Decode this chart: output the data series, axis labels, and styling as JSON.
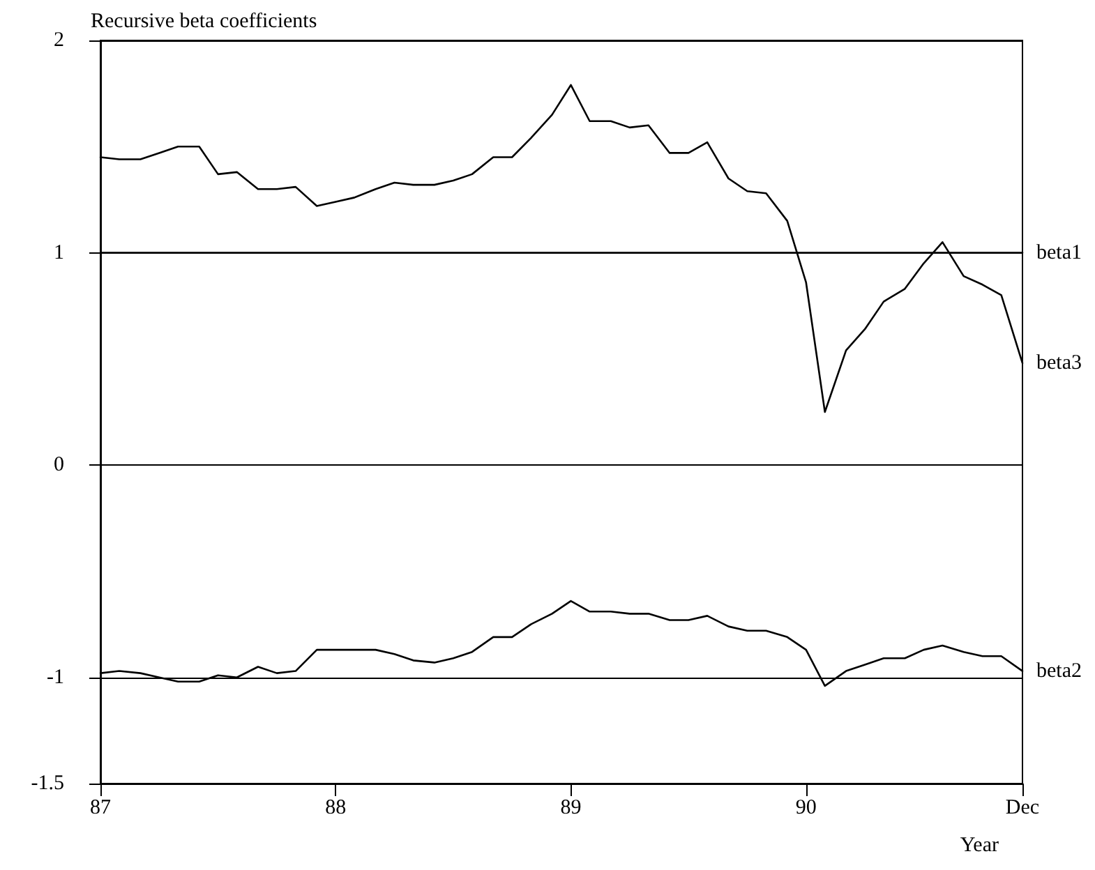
{
  "chart_data": {
    "type": "line",
    "title": "Recursive beta coefficients",
    "xlabel": "Year",
    "x": [
      87,
      87.08,
      87.17,
      87.25,
      87.33,
      87.42,
      87.5,
      87.58,
      87.67,
      87.75,
      87.83,
      87.92,
      88,
      88.08,
      88.17,
      88.25,
      88.33,
      88.42,
      88.5,
      88.58,
      88.67,
      88.75,
      88.83,
      88.92,
      89,
      89.08,
      89.17,
      89.25,
      89.33,
      89.42,
      89.5,
      89.58,
      89.67,
      89.75,
      89.83,
      89.92,
      90,
      90.08,
      90.17,
      90.25,
      90.33,
      90.42,
      90.5,
      90.58,
      90.67,
      90.75,
      90.83,
      90.92
    ],
    "series": [
      {
        "name": "beta1",
        "color": "#000000",
        "x": [
          87,
          90.92
        ],
        "values": [
          1,
          1
        ]
      },
      {
        "name": "beta3",
        "color": "#000000",
        "values": [
          1.45,
          1.44,
          1.44,
          1.47,
          1.5,
          1.5,
          1.37,
          1.38,
          1.3,
          1.3,
          1.31,
          1.22,
          1.24,
          1.26,
          1.3,
          1.33,
          1.32,
          1.32,
          1.34,
          1.37,
          1.45,
          1.45,
          1.54,
          1.65,
          1.79,
          1.62,
          1.62,
          1.59,
          1.6,
          1.47,
          1.47,
          1.52,
          1.35,
          1.29,
          1.28,
          1.15,
          0.86,
          0.25,
          0.54,
          0.64,
          0.77,
          0.83,
          0.95,
          1.05,
          0.89,
          0.85,
          0.8,
          0.48
        ]
      },
      {
        "name": "beta2",
        "color": "#000000",
        "values": [
          -0.98,
          -0.97,
          -0.98,
          -1,
          -1.02,
          -1.02,
          -0.99,
          -1,
          -0.95,
          -0.98,
          -0.97,
          -0.87,
          -0.87,
          -0.87,
          -0.87,
          -0.89,
          -0.92,
          -0.93,
          -0.91,
          -0.88,
          -0.81,
          -0.81,
          -0.75,
          -0.7,
          -0.64,
          -0.69,
          -0.69,
          -0.7,
          -0.7,
          -0.73,
          -0.73,
          -0.71,
          -0.76,
          -0.78,
          -0.78,
          -0.81,
          -0.87,
          -1.04,
          -0.97,
          -0.94,
          -0.91,
          -0.91,
          -0.87,
          -0.85,
          -0.88,
          -0.9,
          -0.9,
          -0.97
        ]
      }
    ],
    "xlim": [
      87,
      90.92
    ],
    "xticks": [
      87,
      88,
      89,
      90,
      {
        "value": 90.92,
        "label": "Dec"
      }
    ],
    "ylim": [
      -1.5,
      2
    ],
    "yticks": [
      2,
      1,
      0,
      -1,
      -1.5
    ],
    "grid": "y",
    "legend": false,
    "marker": "none",
    "line_style": "solid"
  }
}
